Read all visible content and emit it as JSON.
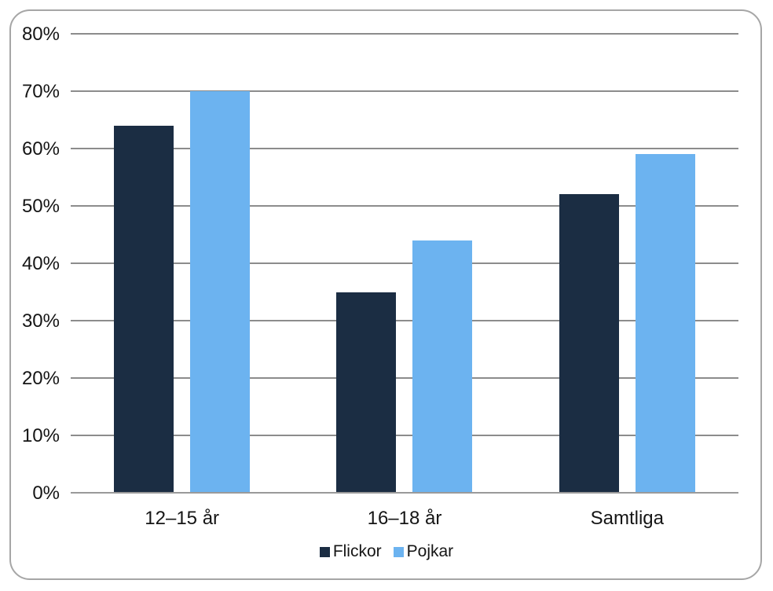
{
  "chart_data": {
    "type": "bar",
    "title": "",
    "xlabel": "",
    "ylabel": "",
    "categories": [
      "12–15 år",
      "16–18 år",
      "Samtliga"
    ],
    "series": [
      {
        "name": "Flickor",
        "color": "#1b2d43",
        "values": [
          64,
          35,
          52
        ]
      },
      {
        "name": "Pojkar",
        "color": "#6cb3f0",
        "values": [
          70,
          44,
          59
        ]
      }
    ],
    "ylim": [
      0,
      80
    ],
    "y_tick_step": 10,
    "y_tick_labels": [
      "0%",
      "10%",
      "20%",
      "30%",
      "40%",
      "50%",
      "60%",
      "70%",
      "80%"
    ],
    "grid": true,
    "legend_position": "bottom"
  },
  "colors": {
    "background": "#ffffff",
    "frame_border": "#a6a6a6",
    "gridline": "#8c8c8c",
    "axis_line": "#9a9a9a",
    "text": "#151515",
    "series_flickor": "#1b2d43",
    "series_pojkar": "#6cb3f0"
  }
}
